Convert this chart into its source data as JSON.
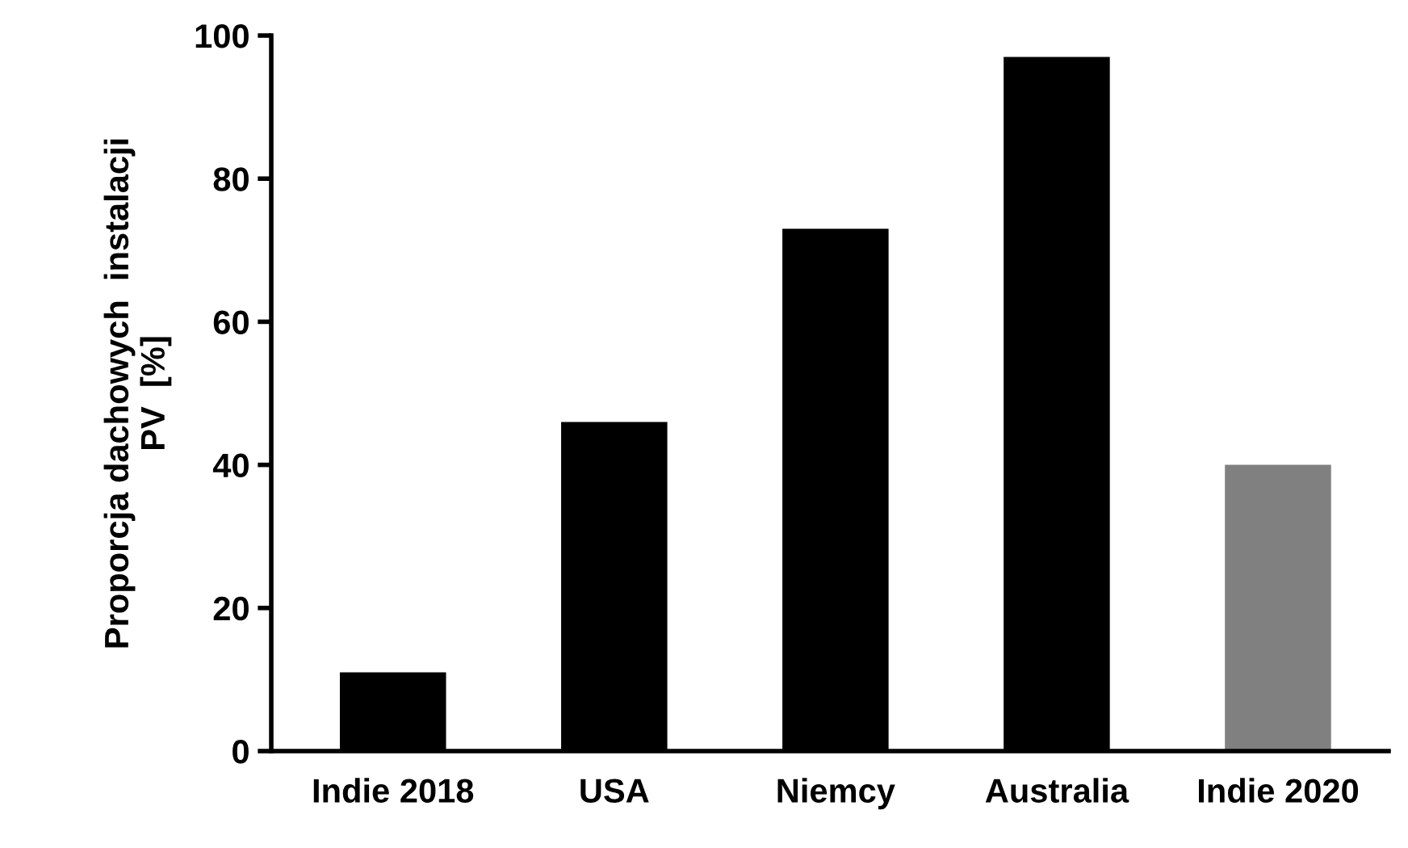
{
  "chart_data": {
    "type": "bar",
    "ylabel": "Proporcja dachowych  instalacji\nPV  [%]",
    "categories": [
      "Indie 2018",
      "USA",
      "Niemcy",
      "Australia",
      "Indie 2020"
    ],
    "values": [
      11,
      46,
      73,
      97,
      40
    ],
    "colors": [
      "#000000",
      "#000000",
      "#000000",
      "#000000",
      "#808080"
    ],
    "ylim": [
      0,
      100
    ],
    "yticks": [
      0,
      20,
      40,
      60,
      80,
      100
    ],
    "grid": false,
    "legend": false
  }
}
